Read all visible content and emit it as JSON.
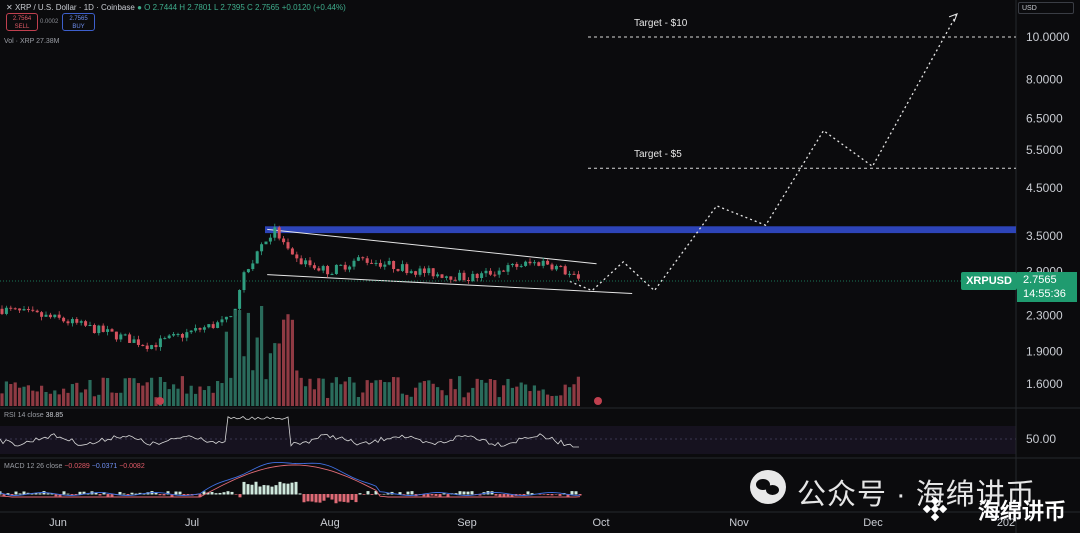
{
  "header": {
    "symbol": "XRP / U.S. Dollar · 1D · Coinbase",
    "ohlc": "O 2.7444  H 2.7801  L 2.7395  C 2.7565  +0.0120 (+0.44%)",
    "sell_price": "2.7564",
    "sell_label": "SELL",
    "buy_price": "2.7565",
    "buy_label": "BUY",
    "spread": "0.0002",
    "volume": "Vol · XRP  27.38M",
    "currency": "USD"
  },
  "price_tag": {
    "symbol": "XRPUSD",
    "price": "2.7565",
    "countdown": "14:55:36",
    "color": "#1f9b6f"
  },
  "rsi": {
    "label": "RSI 14 close",
    "value": "38.85"
  },
  "macd": {
    "label": "MACD 12 26 close",
    "v1": "−0.0289",
    "v2": "−0.0371",
    "v3": "−0.0082"
  },
  "watermark": {
    "left": "公众号 · 海绵讲币",
    "right": "海绵讲币"
  },
  "chart_data": {
    "type": "candlestick",
    "scale": "log",
    "y_ticks": [
      10.0,
      8.0,
      6.5,
      5.5,
      4.5,
      3.5,
      2.9,
      2.3,
      1.9,
      1.6
    ],
    "y_tick_labels": [
      "10.0000",
      "8.0000",
      "6.5000",
      "5.5000",
      "4.5000",
      "3.5000",
      "2.9000",
      "2.3000",
      "1.9000",
      "1.6000"
    ],
    "rsi_tick": "50.00",
    "x_labels": [
      "Jun",
      "Jul",
      "Aug",
      "Sep",
      "Oct",
      "Nov",
      "Dec",
      "202"
    ],
    "targets": [
      {
        "label": "Target - $10",
        "value": 10.0
      },
      {
        "label": "Target - $5",
        "value": 5.0
      }
    ],
    "resistance_zone": [
      3.55,
      3.68
    ],
    "channel_upper": [
      [
        "Jul 18",
        3.62
      ],
      [
        "Sep 30",
        3.02
      ]
    ],
    "channel_lower": [
      [
        "Jul 18",
        2.85
      ],
      [
        "Oct 08",
        2.58
      ]
    ],
    "projection": [
      [
        "Sep 24",
        2.75
      ],
      [
        "Sep 29",
        2.62
      ],
      [
        "Oct 06",
        3.05
      ],
      [
        "Oct 13",
        2.62
      ],
      [
        "Oct 27",
        4.1
      ],
      [
        "Nov 07",
        3.7
      ],
      [
        "Nov 20",
        6.1
      ],
      [
        "Dec 01",
        5.05
      ],
      [
        "Dec 20",
        11.3
      ]
    ],
    "accent": "#2d44b8"
  }
}
